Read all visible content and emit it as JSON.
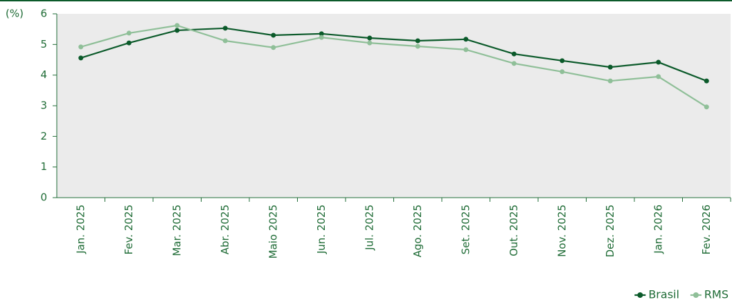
{
  "chart_data": {
    "type": "line",
    "y_label": "(%)",
    "categories": [
      "Jan. 2025",
      "Fev. 2025",
      "Mar. 2025",
      "Abr. 2025",
      "Maio 2025",
      "Jun. 2025",
      "Jul. 2025",
      "Ago. 2025",
      "Set. 2025",
      "Out. 2025",
      "Nov. 2025",
      "Dez. 2025",
      "Jan. 2026",
      "Fev. 2026"
    ],
    "series": [
      {
        "name": "Brasil",
        "color": "#0b5a2a",
        "values": [
          4.56,
          5.05,
          5.46,
          5.53,
          5.3,
          5.35,
          5.21,
          5.12,
          5.17,
          4.69,
          4.47,
          4.26,
          4.42,
          3.81
        ]
      },
      {
        "name": "RMS",
        "color": "#8fbf98",
        "values": [
          4.92,
          5.37,
          5.62,
          5.12,
          4.9,
          5.23,
          5.05,
          4.94,
          4.83,
          4.38,
          4.11,
          3.81,
          3.95,
          2.96
        ]
      }
    ],
    "ylim": [
      0,
      6
    ],
    "yticks": [
      0,
      1,
      2,
      3,
      4,
      5,
      6
    ],
    "legend": "bottom-right"
  }
}
